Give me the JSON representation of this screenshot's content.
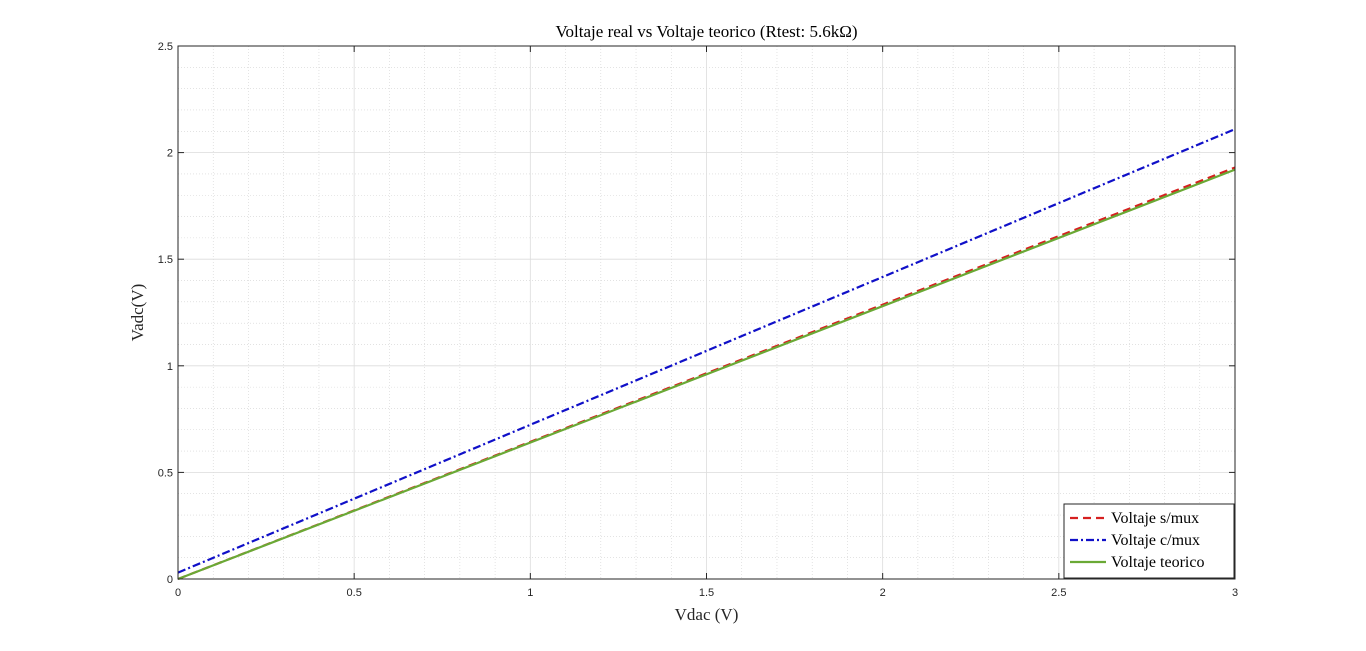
{
  "chart_data": {
    "type": "line",
    "title": "Voltaje real vs Voltaje teorico (Rtest: 5.6kΩ)",
    "xlabel": "Vdac (V)",
    "ylabel": "Vadc(V)",
    "xlim": [
      0,
      3
    ],
    "ylim": [
      0,
      2.5
    ],
    "x_ticks": [
      0,
      0.5,
      1,
      1.5,
      2,
      2.5,
      3
    ],
    "x_tick_labels": [
      "0",
      "0.5",
      "1",
      "1.5",
      "2",
      "2.5",
      "3"
    ],
    "y_ticks": [
      0,
      0.5,
      1,
      1.5,
      2,
      2.5
    ],
    "y_tick_labels": [
      "0",
      "0.5",
      "1",
      "1.5",
      "2",
      "2.5"
    ],
    "grid": true,
    "minor_grid": true,
    "legend_position": "bottom-right",
    "series": [
      {
        "name": "Voltaje s/mux",
        "color": "#d62020",
        "style": "dashed",
        "x": [
          0,
          3
        ],
        "y": [
          0.0,
          1.93
        ]
      },
      {
        "name": "Voltaje c/mux",
        "color": "#1010c8",
        "style": "dashdot",
        "x": [
          0,
          3
        ],
        "y": [
          0.03,
          2.11
        ]
      },
      {
        "name": "Voltaje teorico",
        "color": "#6aa935",
        "style": "solid",
        "x": [
          0,
          3
        ],
        "y": [
          0.0,
          1.92
        ]
      }
    ]
  }
}
